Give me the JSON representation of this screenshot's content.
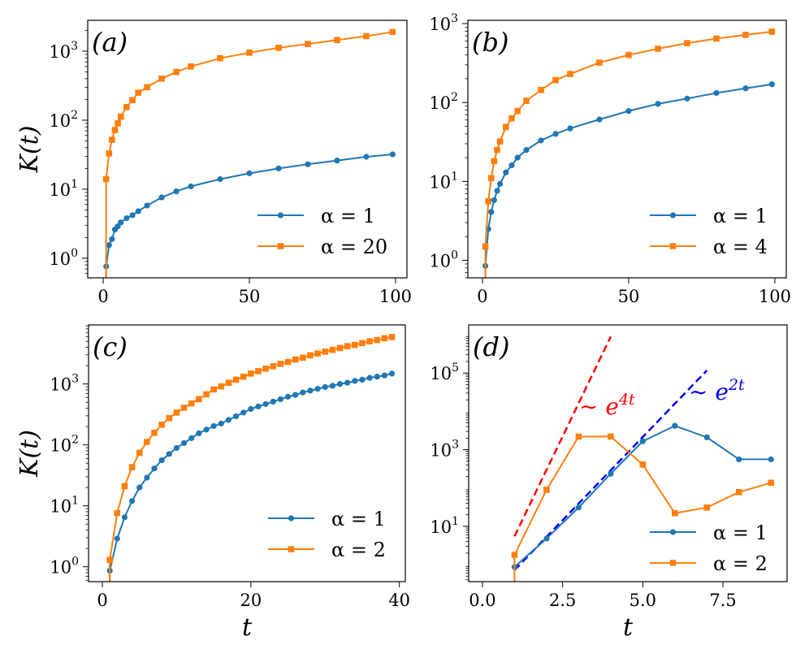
{
  "chart_data": [
    {
      "panel_label": "(a)",
      "type": "line",
      "ylabel": "K(t)",
      "xlabel": "",
      "yscale": "log",
      "xlim": [
        -5.3,
        103.9
      ],
      "ylim": [
        0.52,
        2800
      ],
      "xticks": [
        "0",
        "50",
        "100"
      ],
      "yticks": [
        {
          "base": "10",
          "exp": "0"
        },
        {
          "base": "10",
          "exp": "1"
        },
        {
          "base": "10",
          "exp": "2"
        },
        {
          "base": "10",
          "exp": "3"
        }
      ],
      "legend_position": "lower-right",
      "grid": false,
      "series": [
        {
          "name": "α = 1",
          "color": "#1f77b4",
          "marker": "circle",
          "x": [
            1,
            2,
            3,
            4,
            5,
            6,
            8,
            10,
            12,
            15,
            20,
            25,
            30,
            40,
            50,
            60,
            70,
            80,
            90,
            99
          ],
          "y": [
            0.76,
            1.55,
            1.9,
            2.6,
            2.9,
            3.3,
            3.8,
            4.2,
            4.8,
            5.8,
            7.6,
            9.3,
            11,
            14,
            17,
            20,
            23,
            26,
            29.5,
            32
          ]
        },
        {
          "name": "α = 20",
          "color": "#ff7f0e",
          "marker": "square",
          "x": [
            1,
            2,
            3,
            4,
            5,
            6,
            8,
            10,
            12,
            15,
            20,
            25,
            30,
            40,
            50,
            60,
            70,
            80,
            90,
            99
          ],
          "y": [
            14,
            33,
            52,
            72,
            90,
            112,
            155,
            195,
            250,
            300,
            400,
            500,
            600,
            790,
            950,
            1120,
            1270,
            1450,
            1650,
            1900
          ]
        }
      ]
    },
    {
      "panel_label": "(b)",
      "type": "line",
      "ylabel": "",
      "xlabel": "",
      "yscale": "log",
      "xlim": [
        -5,
        103.9
      ],
      "ylim": [
        0.6,
        1100
      ],
      "xticks": [
        "0",
        "50",
        "100"
      ],
      "yticks": [
        {
          "base": "10",
          "exp": "0"
        },
        {
          "base": "10",
          "exp": "1"
        },
        {
          "base": "10",
          "exp": "2"
        },
        {
          "base": "10",
          "exp": "3"
        }
      ],
      "legend_position": "lower-right",
      "grid": false,
      "series": [
        {
          "name": "α = 1",
          "color": "#1f77b4",
          "marker": "circle",
          "x": [
            1,
            2,
            3,
            4,
            5,
            6,
            8,
            10,
            12,
            15,
            20,
            25,
            30,
            40,
            50,
            60,
            70,
            80,
            90,
            99
          ],
          "y": [
            0.85,
            2.5,
            4.1,
            5.8,
            7.6,
            9.3,
            13,
            16,
            20,
            25,
            33,
            40,
            47,
            61,
            78,
            96,
            112,
            132,
            151,
            170
          ]
        },
        {
          "name": "α = 4",
          "color": "#ff7f0e",
          "marker": "square",
          "x": [
            1,
            2,
            3,
            4,
            5,
            6,
            8,
            10,
            12,
            15,
            20,
            25,
            30,
            40,
            50,
            60,
            70,
            80,
            90,
            99
          ],
          "y": [
            1.5,
            5.6,
            11,
            18,
            25,
            32,
            49,
            63,
            78,
            105,
            144,
            192,
            230,
            320,
            400,
            480,
            565,
            645,
            720,
            790
          ]
        }
      ]
    },
    {
      "panel_label": "(c)",
      "type": "line",
      "ylabel": "K(t)",
      "xlabel": "t",
      "yscale": "log",
      "xlim": [
        -1.86,
        40.8
      ],
      "ylim": [
        0.57,
        9300
      ],
      "xticks": [
        "0",
        "20",
        "40"
      ],
      "yticks": [
        {
          "base": "10",
          "exp": "0"
        },
        {
          "base": "10",
          "exp": "1"
        },
        {
          "base": "10",
          "exp": "2"
        },
        {
          "base": "10",
          "exp": "3"
        }
      ],
      "legend_position": "lower-right",
      "grid": false,
      "series": [
        {
          "name": "α = 1",
          "color": "#1f77b4",
          "marker": "circle",
          "x": [
            1,
            2,
            3,
            4,
            5,
            6,
            7,
            8,
            9,
            10,
            11,
            12,
            13,
            14,
            15,
            16,
            17,
            18,
            19,
            20,
            21,
            22,
            23,
            24,
            25,
            26,
            27,
            28,
            29,
            30,
            31,
            32,
            33,
            34,
            35,
            36,
            37,
            38,
            39
          ],
          "y": [
            0.86,
            2.9,
            6.5,
            12,
            20,
            29,
            41,
            56,
            71,
            89,
            107,
            129,
            155,
            178,
            204,
            224,
            257,
            295,
            339,
            389,
            427,
            468,
            513,
            562,
            617,
            661,
            724,
            776,
            832,
            891,
            933,
            1000,
            1047,
            1122,
            1175,
            1259,
            1318,
            1380,
            1479
          ]
        },
        {
          "name": "α = 2",
          "color": "#ff7f0e",
          "marker": "square",
          "x": [
            1,
            2,
            3,
            4,
            5,
            6,
            7,
            8,
            9,
            10,
            11,
            12,
            13,
            14,
            15,
            16,
            17,
            18,
            19,
            20,
            21,
            22,
            23,
            24,
            25,
            26,
            27,
            28,
            29,
            30,
            31,
            32,
            33,
            34,
            35,
            36,
            37,
            38,
            39
          ],
          "y": [
            1.3,
            7.6,
            21,
            43,
            74,
            112,
            158,
            214,
            275,
            339,
            407,
            479,
            562,
            676,
            813,
            912,
            1047,
            1175,
            1318,
            1479,
            1622,
            1778,
            1950,
            2138,
            2291,
            2512,
            2692,
            2951,
            3162,
            3388,
            3631,
            3890,
            4169,
            4365,
            4677,
            5012,
            5248,
            5623,
            5888
          ]
        }
      ]
    },
    {
      "panel_label": "(d)",
      "type": "line",
      "ylabel": "",
      "xlabel": "t",
      "yscale": "log",
      "xlim": [
        -0.43,
        9.5
      ],
      "ylim": [
        0.36,
        1800000
      ],
      "xticks": [
        "0.0",
        "2.5",
        "5.0",
        "7.5"
      ],
      "yticks": [
        {
          "base": "10",
          "exp": "1"
        },
        {
          "base": "10",
          "exp": "3"
        },
        {
          "base": "10",
          "exp": "5"
        }
      ],
      "legend_position": "lower-right",
      "grid": false,
      "series": [
        {
          "name": "α = 1",
          "color": "#1f77b4",
          "marker": "circle",
          "x": [
            1,
            2,
            3,
            4,
            5,
            6,
            7,
            8,
            9
          ],
          "y": [
            0.87,
            4.8,
            31,
            235,
            1660,
            4200,
            2100,
            560,
            560
          ]
        },
        {
          "name": "α = 2",
          "color": "#ff7f0e",
          "marker": "square",
          "x": [
            1,
            2,
            3,
            4,
            5,
            6,
            7,
            8,
            9
          ],
          "y": [
            1.8,
            90,
            2200,
            2200,
            410,
            22,
            31,
            78,
            137
          ]
        }
      ],
      "reference_lines": [
        {
          "label_prefix": "∼ e",
          "label_exp": "4t",
          "color": "#ff0000",
          "style": "dashed",
          "x": [
            1,
            4
          ],
          "y": [
            5.5,
            890000
          ]
        },
        {
          "label_prefix": "∼ e",
          "label_exp": "2t",
          "color": "#0000ff",
          "style": "dashed",
          "x": [
            1,
            7
          ],
          "y": [
            0.72,
            117000
          ]
        }
      ]
    }
  ]
}
